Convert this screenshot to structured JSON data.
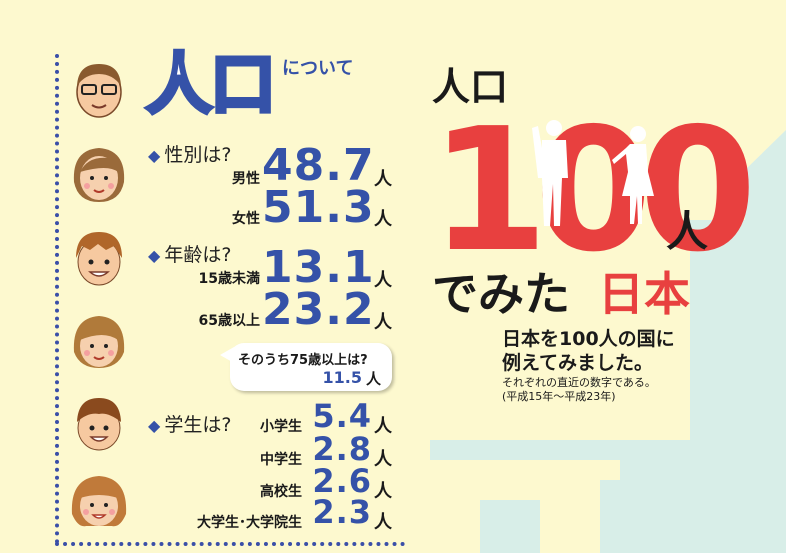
{
  "header": {
    "title": "人口",
    "title_suffix": "について"
  },
  "sections": {
    "gender": {
      "question": "性別は?",
      "rows": [
        {
          "label": "男性",
          "value": "48.7",
          "unit": "人"
        },
        {
          "label": "女性",
          "value": "51.3",
          "unit": "人"
        }
      ]
    },
    "age": {
      "question": "年齢は?",
      "rows": [
        {
          "label": "15歳未満",
          "value": "13.1",
          "unit": "人"
        },
        {
          "label": "65歳以上",
          "value": "23.2",
          "unit": "人"
        }
      ],
      "bubble": {
        "text": "そのうち75歳以上は?",
        "value": "11.5",
        "unit": "人"
      }
    },
    "student": {
      "question": "学生は?",
      "rows": [
        {
          "label": "小学生",
          "value": "5.4",
          "unit": "人"
        },
        {
          "label": "中学生",
          "value": "2.8",
          "unit": "人"
        },
        {
          "label": "高校生",
          "value": "2.6",
          "unit": "人"
        },
        {
          "label": "大学生･大学院生",
          "value": "2.3",
          "unit": "人"
        }
      ]
    }
  },
  "hero": {
    "line1": "人口",
    "number": "100",
    "unit": "人",
    "line3a": "でみた",
    "line3b": "日本",
    "desc1": "日本を100人の国に",
    "desc2": "例えてみました。",
    "note1": "それぞれの直近の数字である。",
    "note2": "(平成15年〜平成23年)"
  },
  "colors": {
    "accent": "#3552a8",
    "red": "#e8403f",
    "background": "#fdf9cf",
    "shape": "#d8eee8"
  }
}
